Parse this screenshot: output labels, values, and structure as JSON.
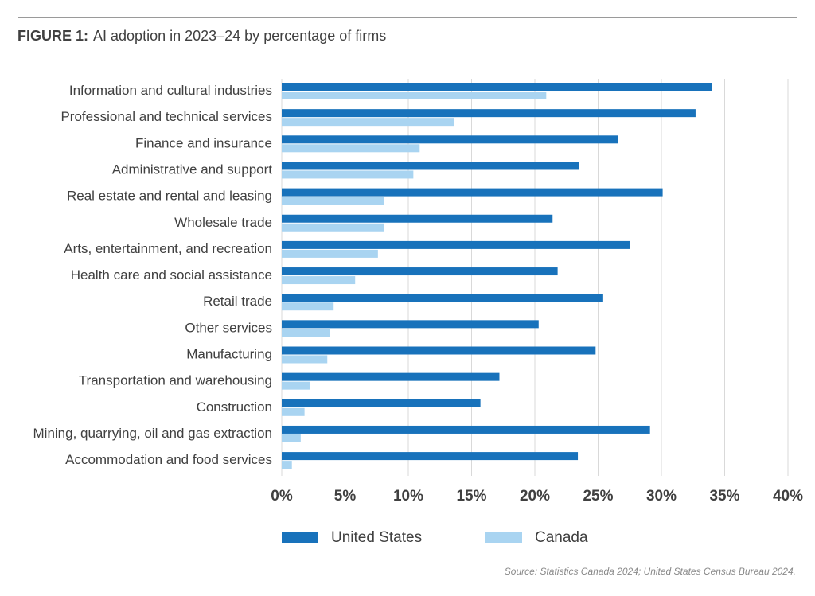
{
  "figure": {
    "label": "FIGURE 1:",
    "title": "AI adoption in 2023–24 by percentage of firms"
  },
  "source": "Source: Statistics Canada 2024; United States Census Bureau 2024.",
  "colors": {
    "united_states": "#1872bb",
    "canada": "#a9d4f1",
    "grid": "#d9d9d9",
    "text": "#404040"
  },
  "chart_data": {
    "type": "bar",
    "orientation": "horizontal",
    "title": "AI adoption in 2023–24 by percentage of firms",
    "xlabel": "",
    "ylabel": "",
    "xlim": [
      0,
      40
    ],
    "ticks": [
      0,
      5,
      10,
      15,
      20,
      25,
      30,
      35,
      40
    ],
    "tick_labels": [
      "0%",
      "5%",
      "10%",
      "15%",
      "20%",
      "25%",
      "30%",
      "35%",
      "40%"
    ],
    "grid": true,
    "legend_position": "bottom",
    "categories": [
      "Information and cultural industries",
      "Professional and technical services",
      "Finance and insurance",
      "Administrative and support",
      "Real estate and rental and leasing",
      "Wholesale trade",
      "Arts, entertainment, and recreation",
      "Health care and social assistance",
      "Retail trade",
      "Other services",
      "Manufacturing",
      "Transportation and warehousing",
      "Construction",
      "Mining, quarrying, oil and gas extraction",
      "Accommodation and food services"
    ],
    "series": [
      {
        "name": "United States",
        "color": "#1872bb",
        "values": [
          34.0,
          32.7,
          26.6,
          23.5,
          30.1,
          21.4,
          27.5,
          21.8,
          25.4,
          20.3,
          24.8,
          17.2,
          15.7,
          29.1,
          23.4
        ]
      },
      {
        "name": "Canada",
        "color": "#a9d4f1",
        "values": [
          20.9,
          13.6,
          10.9,
          10.4,
          8.1,
          8.1,
          7.6,
          5.8,
          4.1,
          3.8,
          3.6,
          2.2,
          1.8,
          1.5,
          0.8
        ]
      }
    ]
  }
}
